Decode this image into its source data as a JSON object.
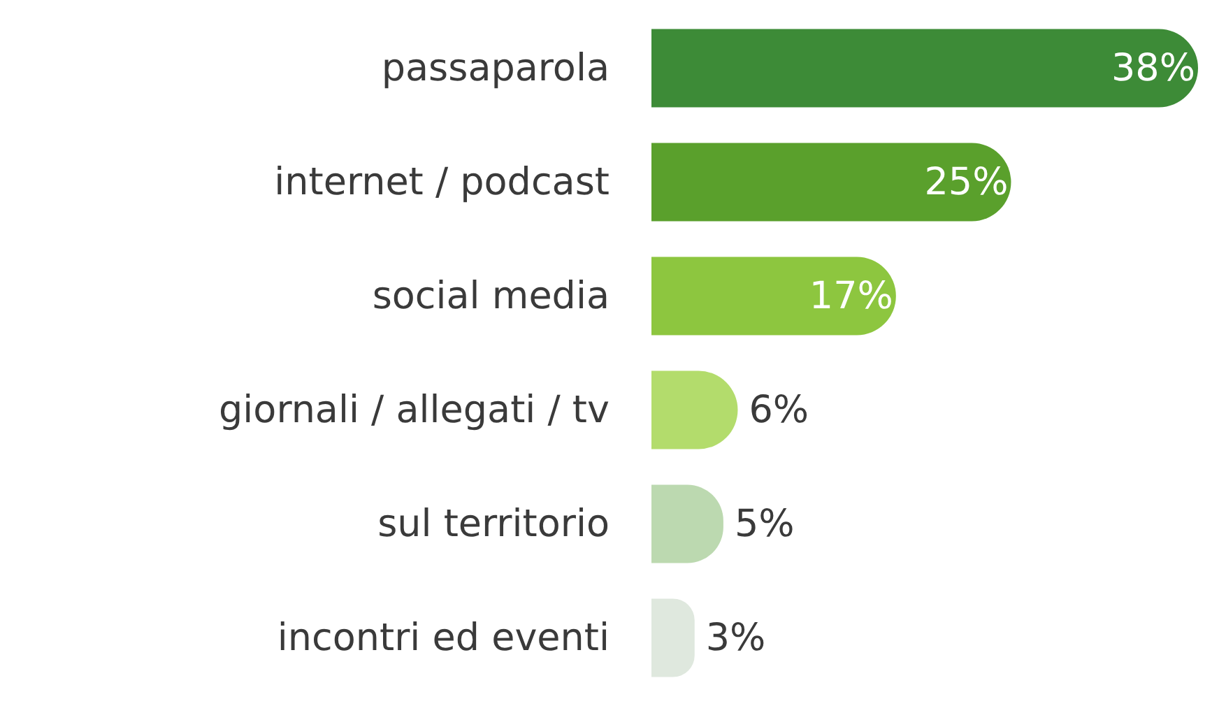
{
  "chart_data": {
    "type": "bar",
    "orientation": "horizontal",
    "categories": [
      "passaparola",
      "internet / podcast",
      "social media",
      "giornali / allegati / tv",
      "sul territorio",
      "incontri ed eventi"
    ],
    "values": [
      38,
      25,
      17,
      6,
      5,
      3
    ],
    "value_labels": [
      "38%",
      "25%",
      "17%",
      "6%",
      "5%",
      "3%"
    ],
    "colors": [
      "#3d8b37",
      "#5aa02c",
      "#8dc63f",
      "#b3dc6c",
      "#bcd9b0",
      "#dfe8de"
    ]
  }
}
